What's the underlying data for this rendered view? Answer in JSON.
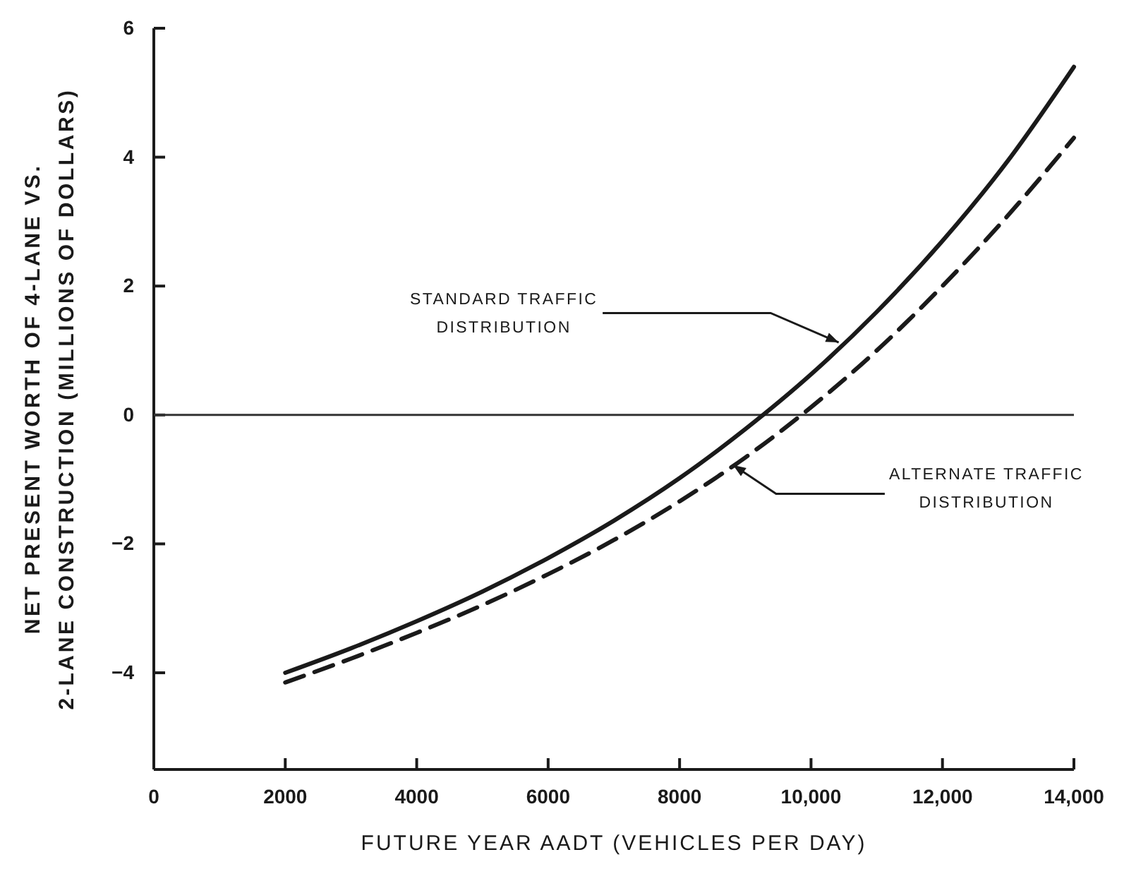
{
  "chart_data": {
    "type": "line",
    "xlabel": "FUTURE YEAR AADT (VEHICLES PER DAY)",
    "ylabel": "NET PRESENT WORTH OF 4-LANE VS.\n2-LANE CONSTRUCTION (MILLIONS OF DOLLARS)",
    "x": [
      2000,
      3000,
      4000,
      5000,
      6000,
      7000,
      8000,
      9000,
      10000,
      11000,
      12000,
      13000,
      14000
    ],
    "series": [
      {
        "color": "#1a1a1a",
        "line_style": "solid",
        "values": [
          -4.0,
          -3.62,
          -3.2,
          -2.74,
          -2.22,
          -1.64,
          -0.98,
          -0.22,
          0.63,
          1.6,
          2.7,
          3.95,
          5.4
        ]
      },
      {
        "color": "#1a1a1a",
        "line_style": "dashed",
        "values": [
          -4.15,
          -3.78,
          -3.38,
          -2.95,
          -2.47,
          -1.94,
          -1.34,
          -0.66,
          0.12,
          1.0,
          2.0,
          3.1,
          4.3
        ]
      }
    ],
    "xlim": [
      0,
      14000
    ],
    "xticks": [
      0,
      2000,
      4000,
      6000,
      8000,
      {
        "value": 10000,
        "label": "10,000"
      },
      {
        "value": 12000,
        "label": "12,000"
      },
      {
        "value": 14000,
        "label": "14,000"
      }
    ],
    "ylim": [
      -5.5,
      6
    ],
    "yticks": [
      -4,
      -2,
      0,
      2,
      4,
      6
    ],
    "ref_lines": [
      {
        "axis": "y",
        "value": 0,
        "color": "#333333"
      }
    ],
    "annotations": [
      {
        "text": "STANDARD TRAFFIC\nDISTRIBUTION",
        "x": 10480,
        "y": 1.1
      },
      {
        "text": "ALTERNATE TRAFFIC\nDISTRIBUTION",
        "x": 8760,
        "y": -0.74
      }
    ],
    "grid": false,
    "marker": "none"
  }
}
